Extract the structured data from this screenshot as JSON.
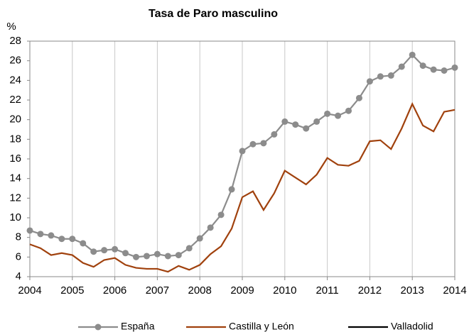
{
  "chart_data": {
    "type": "line",
    "title": "Tasa de Paro masculino",
    "y_label": "%",
    "x": [
      2004,
      2004.25,
      2004.5,
      2004.75,
      2005,
      2005.25,
      2005.5,
      2005.75,
      2006,
      2006.25,
      2006.5,
      2006.75,
      2007,
      2007.25,
      2007.5,
      2007.75,
      2008,
      2008.25,
      2008.5,
      2008.75,
      2009,
      2009.25,
      2009.5,
      2009.75,
      2010,
      2010.25,
      2010.5,
      2010.75,
      2011,
      2011.25,
      2011.5,
      2011.75,
      2012,
      2012.25,
      2012.5,
      2012.75,
      2013,
      2013.25,
      2013.5,
      2013.75,
      2014
    ],
    "series": [
      {
        "name": "España",
        "color": "#8c8c8c",
        "markers": true,
        "values": [
          8.7,
          8.35,
          8.2,
          7.85,
          7.85,
          7.4,
          6.55,
          6.7,
          6.8,
          6.4,
          6.0,
          6.1,
          6.3,
          6.1,
          6.2,
          6.9,
          7.9,
          9.0,
          10.3,
          12.9,
          16.8,
          17.5,
          17.6,
          18.5,
          19.8,
          19.5,
          19.1,
          19.8,
          20.6,
          20.4,
          20.9,
          22.2,
          23.9,
          24.4,
          24.5,
          25.4,
          26.6,
          25.5,
          25.1,
          25.0,
          25.3
        ]
      },
      {
        "name": "Castilla y León",
        "color": "#a0410d",
        "markers": false,
        "values": [
          7.3,
          6.9,
          6.2,
          6.4,
          6.2,
          5.4,
          5.0,
          5.7,
          5.9,
          5.2,
          4.9,
          4.8,
          4.8,
          4.5,
          5.1,
          4.7,
          5.2,
          6.3,
          7.1,
          8.9,
          12.1,
          12.7,
          10.8,
          12.5,
          14.8,
          14.1,
          13.4,
          14.4,
          16.1,
          15.4,
          15.3,
          15.8,
          17.8,
          17.9,
          17.0,
          19.1,
          21.6,
          19.4,
          18.8,
          20.8,
          21.0
        ]
      },
      {
        "name": "Valladolid",
        "color": "#000000",
        "markers": false,
        "values": [
          null,
          null,
          null,
          null,
          null,
          null,
          null,
          null,
          null,
          null,
          null,
          null,
          null,
          null,
          null,
          null,
          null,
          null,
          null,
          null,
          null,
          null,
          null,
          null,
          null,
          null,
          null,
          null,
          null,
          null,
          null,
          null,
          null,
          null,
          null,
          null,
          null,
          null,
          null,
          null,
          null
        ]
      }
    ],
    "xlim": [
      2004,
      2014
    ],
    "xticks": [
      2004,
      2005,
      2006,
      2007,
      2008,
      2009,
      2010,
      2011,
      2012,
      2013,
      2014
    ],
    "ylim": [
      4,
      28
    ],
    "yticks": [
      4,
      6,
      8,
      10,
      12,
      14,
      16,
      18,
      20,
      22,
      24,
      26,
      28
    ],
    "grid": "x",
    "legend": "bottom"
  }
}
